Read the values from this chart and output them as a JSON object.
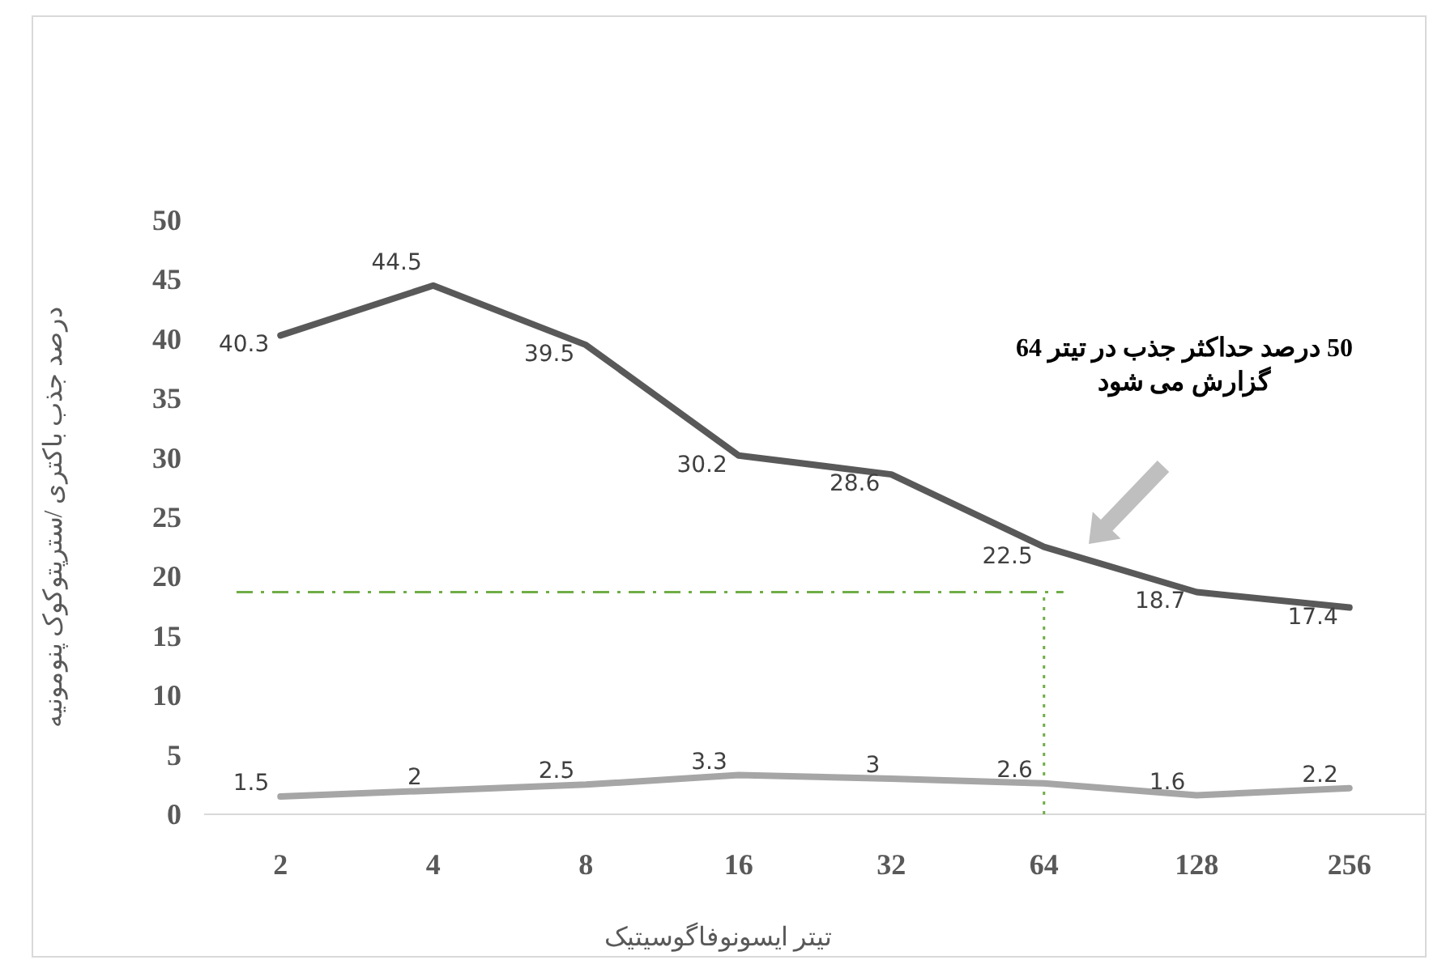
{
  "chart_data": {
    "type": "line",
    "xlabel": "تیتر ایسونوفاگوسیتیک",
    "ylabel": "درصد جذب باکتری /سترپتوکوک پنومونیه",
    "categories": [
      "2",
      "4",
      "8",
      "16",
      "32",
      "64",
      "128",
      "256"
    ],
    "series": [
      {
        "color": "#595959",
        "values": [
          40.3,
          44.5,
          39.5,
          30.2,
          28.6,
          22.5,
          18.7,
          17.4
        ]
      },
      {
        "color": "#a6a6a6",
        "values": [
          1.5,
          2,
          2.5,
          3.3,
          3,
          2.6,
          1.6,
          2.2
        ]
      }
    ],
    "ylim": [
      0,
      50
    ],
    "yticks": [
      0,
      5,
      10,
      15,
      20,
      25,
      30,
      35,
      40,
      45,
      50
    ],
    "data_labels": true,
    "grid": false,
    "marker": "none",
    "line_style": "solid",
    "ref_lines": [
      {
        "axis": "y",
        "value": 18.7,
        "color": "#70ad47",
        "line_style": "dashdot"
      },
      {
        "axis": "x",
        "value": "64",
        "color": "#70ad47",
        "line_style": "dotted"
      }
    ],
    "annotations": [
      "50 درصد حداکثر جذب در  تیتر 64 گزارش می شود"
    ]
  }
}
